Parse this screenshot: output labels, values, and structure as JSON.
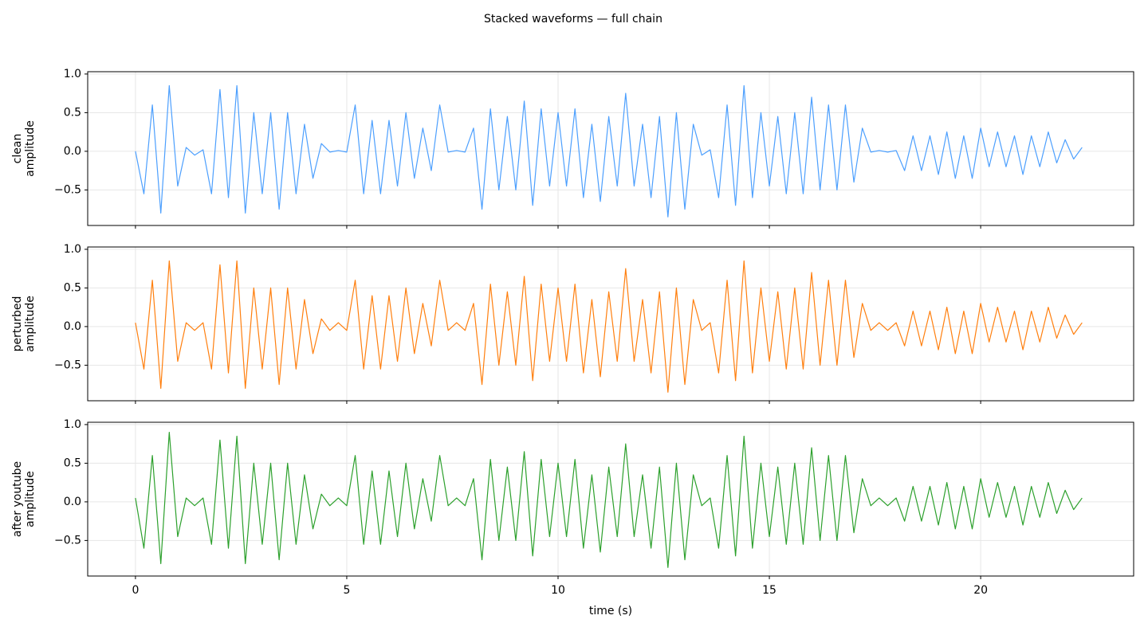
{
  "title": "Stacked waveforms — full chain",
  "chart_data": [
    {
      "type": "line",
      "color": "#4c9ffe",
      "ylabel": [
        "clean",
        "amplitude"
      ],
      "grid": true,
      "show_xticklabels": false,
      "xlim": [
        -1.13,
        23.62
      ],
      "xticks": [
        0,
        5,
        10,
        15,
        20
      ],
      "ylim": [
        -0.96,
        1.03
      ],
      "yticks": [
        {
          "value": -0.5,
          "label": "−0.5"
        },
        {
          "value": 0,
          "label": "0.0"
        },
        {
          "value": 0.5,
          "label": "0.5"
        },
        {
          "value": 1.0,
          "label": "1.0"
        }
      ],
      "x": [
        0,
        0.2,
        0.4,
        0.6,
        0.8,
        1.0,
        1.2,
        1.4,
        1.6,
        1.8,
        2.0,
        2.2,
        2.4,
        2.6,
        2.8,
        3.0,
        3.2,
        3.4,
        3.6,
        3.8,
        4.0,
        4.2,
        4.4,
        4.6,
        4.8,
        5.0,
        5.2,
        5.4,
        5.6,
        5.8,
        6.0,
        6.2,
        6.4,
        6.6,
        6.8,
        7.0,
        7.2,
        7.4,
        7.6,
        7.8,
        8.0,
        8.2,
        8.4,
        8.6,
        8.8,
        9.0,
        9.2,
        9.4,
        9.6,
        9.8,
        10.0,
        10.2,
        10.4,
        10.6,
        10.8,
        11.0,
        11.2,
        11.4,
        11.6,
        11.8,
        12.0,
        12.2,
        12.4,
        12.6,
        12.8,
        13.0,
        13.2,
        13.4,
        13.6,
        13.8,
        14.0,
        14.2,
        14.4,
        14.6,
        14.8,
        15.0,
        15.2,
        15.4,
        15.6,
        15.8,
        16.0,
        16.2,
        16.4,
        16.6,
        16.8,
        17.0,
        17.2,
        17.4,
        17.6,
        17.8,
        18.0,
        18.2,
        18.4,
        18.6,
        18.8,
        19.0,
        19.2,
        19.4,
        19.6,
        19.8,
        20.0,
        20.2,
        20.4,
        20.6,
        20.8,
        21.0,
        21.2,
        21.4,
        21.6,
        21.8,
        22.0,
        22.2,
        22.4
      ],
      "values": [
        0.0,
        -0.55,
        0.6,
        -0.8,
        0.85,
        -0.45,
        0.05,
        -0.05,
        0.02,
        -0.55,
        0.8,
        -0.6,
        0.85,
        -0.8,
        0.5,
        -0.55,
        0.5,
        -0.75,
        0.5,
        -0.55,
        0.35,
        -0.35,
        0.1,
        -0.01,
        0.01,
        -0.01,
        0.6,
        -0.55,
        0.4,
        -0.55,
        0.4,
        -0.45,
        0.5,
        -0.35,
        0.3,
        -0.25,
        0.6,
        -0.01,
        0.01,
        -0.01,
        0.3,
        -0.75,
        0.55,
        -0.5,
        0.45,
        -0.5,
        0.65,
        -0.7,
        0.55,
        -0.45,
        0.5,
        -0.45,
        0.55,
        -0.6,
        0.35,
        -0.65,
        0.45,
        -0.45,
        0.75,
        -0.45,
        0.35,
        -0.6,
        0.45,
        -0.85,
        0.5,
        -0.75,
        0.35,
        -0.05,
        0.02,
        -0.6,
        0.6,
        -0.7,
        0.85,
        -0.6,
        0.5,
        -0.45,
        0.45,
        -0.55,
        0.5,
        -0.55,
        0.7,
        -0.5,
        0.6,
        -0.5,
        0.6,
        -0.4,
        0.3,
        -0.01,
        0.01,
        -0.01,
        0.01,
        -0.25,
        0.2,
        -0.25,
        0.2,
        -0.3,
        0.25,
        -0.35,
        0.2,
        -0.35,
        0.3,
        -0.2,
        0.25,
        -0.2,
        0.2,
        -0.3,
        0.2,
        -0.2,
        0.25,
        -0.15,
        0.15,
        -0.1,
        0.05
      ]
    },
    {
      "type": "line",
      "color": "#ff7f0e",
      "ylabel": [
        "perturbed",
        "amplitude"
      ],
      "grid": true,
      "show_xticklabels": false,
      "xlim": [
        -1.13,
        23.62
      ],
      "xticks": [
        0,
        5,
        10,
        15,
        20
      ],
      "ylim": [
        -0.96,
        1.03
      ],
      "yticks": [
        {
          "value": -0.5,
          "label": "−0.5"
        },
        {
          "value": 0,
          "label": "0.0"
        },
        {
          "value": 0.5,
          "label": "0.5"
        },
        {
          "value": 1.0,
          "label": "1.0"
        }
      ],
      "x": [
        0,
        0.2,
        0.4,
        0.6,
        0.8,
        1.0,
        1.2,
        1.4,
        1.6,
        1.8,
        2.0,
        2.2,
        2.4,
        2.6,
        2.8,
        3.0,
        3.2,
        3.4,
        3.6,
        3.8,
        4.0,
        4.2,
        4.4,
        4.6,
        4.8,
        5.0,
        5.2,
        5.4,
        5.6,
        5.8,
        6.0,
        6.2,
        6.4,
        6.6,
        6.8,
        7.0,
        7.2,
        7.4,
        7.6,
        7.8,
        8.0,
        8.2,
        8.4,
        8.6,
        8.8,
        9.0,
        9.2,
        9.4,
        9.6,
        9.8,
        10.0,
        10.2,
        10.4,
        10.6,
        10.8,
        11.0,
        11.2,
        11.4,
        11.6,
        11.8,
        12.0,
        12.2,
        12.4,
        12.6,
        12.8,
        13.0,
        13.2,
        13.4,
        13.6,
        13.8,
        14.0,
        14.2,
        14.4,
        14.6,
        14.8,
        15.0,
        15.2,
        15.4,
        15.6,
        15.8,
        16.0,
        16.2,
        16.4,
        16.6,
        16.8,
        17.0,
        17.2,
        17.4,
        17.6,
        17.8,
        18.0,
        18.2,
        18.4,
        18.6,
        18.8,
        19.0,
        19.2,
        19.4,
        19.6,
        19.8,
        20.0,
        20.2,
        20.4,
        20.6,
        20.8,
        21.0,
        21.2,
        21.4,
        21.6,
        21.8,
        22.0,
        22.2,
        22.4
      ],
      "values": [
        0.05,
        -0.55,
        0.6,
        -0.8,
        0.85,
        -0.45,
        0.05,
        -0.05,
        0.05,
        -0.55,
        0.8,
        -0.6,
        0.85,
        -0.8,
        0.5,
        -0.55,
        0.5,
        -0.75,
        0.5,
        -0.55,
        0.35,
        -0.35,
        0.1,
        -0.05,
        0.05,
        -0.05,
        0.6,
        -0.55,
        0.4,
        -0.55,
        0.4,
        -0.45,
        0.5,
        -0.35,
        0.3,
        -0.25,
        0.6,
        -0.05,
        0.05,
        -0.05,
        0.3,
        -0.75,
        0.55,
        -0.5,
        0.45,
        -0.5,
        0.65,
        -0.7,
        0.55,
        -0.45,
        0.5,
        -0.45,
        0.55,
        -0.6,
        0.35,
        -0.65,
        0.45,
        -0.45,
        0.75,
        -0.45,
        0.35,
        -0.6,
        0.45,
        -0.85,
        0.5,
        -0.75,
        0.35,
        -0.05,
        0.05,
        -0.6,
        0.6,
        -0.7,
        0.85,
        -0.6,
        0.5,
        -0.45,
        0.45,
        -0.55,
        0.5,
        -0.55,
        0.7,
        -0.5,
        0.6,
        -0.5,
        0.6,
        -0.4,
        0.3,
        -0.05,
        0.05,
        -0.05,
        0.05,
        -0.25,
        0.2,
        -0.25,
        0.2,
        -0.3,
        0.25,
        -0.35,
        0.2,
        -0.35,
        0.3,
        -0.2,
        0.25,
        -0.2,
        0.2,
        -0.3,
        0.2,
        -0.2,
        0.25,
        -0.15,
        0.15,
        -0.1,
        0.05
      ]
    },
    {
      "type": "line",
      "color": "#2ca02c",
      "ylabel": [
        "after youtube",
        "amplitude"
      ],
      "grid": true,
      "show_xticklabels": true,
      "xlabel": "time (s)",
      "xlim": [
        -1.13,
        23.62
      ],
      "xticks": [
        0,
        5,
        10,
        15,
        20
      ],
      "ylim": [
        -0.96,
        1.03
      ],
      "yticks": [
        {
          "value": -0.5,
          "label": "−0.5"
        },
        {
          "value": 0,
          "label": "0.0"
        },
        {
          "value": 0.5,
          "label": "0.5"
        },
        {
          "value": 1.0,
          "label": "1.0"
        }
      ],
      "x": [
        0,
        0.2,
        0.4,
        0.6,
        0.8,
        1.0,
        1.2,
        1.4,
        1.6,
        1.8,
        2.0,
        2.2,
        2.4,
        2.6,
        2.8,
        3.0,
        3.2,
        3.4,
        3.6,
        3.8,
        4.0,
        4.2,
        4.4,
        4.6,
        4.8,
        5.0,
        5.2,
        5.4,
        5.6,
        5.8,
        6.0,
        6.2,
        6.4,
        6.6,
        6.8,
        7.0,
        7.2,
        7.4,
        7.6,
        7.8,
        8.0,
        8.2,
        8.4,
        8.6,
        8.8,
        9.0,
        9.2,
        9.4,
        9.6,
        9.8,
        10.0,
        10.2,
        10.4,
        10.6,
        10.8,
        11.0,
        11.2,
        11.4,
        11.6,
        11.8,
        12.0,
        12.2,
        12.4,
        12.6,
        12.8,
        13.0,
        13.2,
        13.4,
        13.6,
        13.8,
        14.0,
        14.2,
        14.4,
        14.6,
        14.8,
        15.0,
        15.2,
        15.4,
        15.6,
        15.8,
        16.0,
        16.2,
        16.4,
        16.6,
        16.8,
        17.0,
        17.2,
        17.4,
        17.6,
        17.8,
        18.0,
        18.2,
        18.4,
        18.6,
        18.8,
        19.0,
        19.2,
        19.4,
        19.6,
        19.8,
        20.0,
        20.2,
        20.4,
        20.6,
        20.8,
        21.0,
        21.2,
        21.4,
        21.6,
        21.8,
        22.0,
        22.2,
        22.4
      ],
      "values": [
        0.05,
        -0.6,
        0.6,
        -0.8,
        0.9,
        -0.45,
        0.05,
        -0.05,
        0.05,
        -0.55,
        0.8,
        -0.6,
        0.85,
        -0.8,
        0.5,
        -0.55,
        0.5,
        -0.75,
        0.5,
        -0.55,
        0.35,
        -0.35,
        0.1,
        -0.05,
        0.05,
        -0.05,
        0.6,
        -0.55,
        0.4,
        -0.55,
        0.4,
        -0.45,
        0.5,
        -0.35,
        0.3,
        -0.25,
        0.6,
        -0.05,
        0.05,
        -0.05,
        0.3,
        -0.75,
        0.55,
        -0.5,
        0.45,
        -0.5,
        0.65,
        -0.7,
        0.55,
        -0.45,
        0.5,
        -0.45,
        0.55,
        -0.6,
        0.35,
        -0.65,
        0.45,
        -0.45,
        0.75,
        -0.45,
        0.35,
        -0.6,
        0.45,
        -0.85,
        0.5,
        -0.75,
        0.35,
        -0.05,
        0.05,
        -0.6,
        0.6,
        -0.7,
        0.85,
        -0.6,
        0.5,
        -0.45,
        0.45,
        -0.55,
        0.5,
        -0.55,
        0.7,
        -0.5,
        0.6,
        -0.5,
        0.6,
        -0.4,
        0.3,
        -0.05,
        0.05,
        -0.05,
        0.05,
        -0.25,
        0.2,
        -0.25,
        0.2,
        -0.3,
        0.25,
        -0.35,
        0.2,
        -0.35,
        0.3,
        -0.2,
        0.25,
        -0.2,
        0.2,
        -0.3,
        0.2,
        -0.2,
        0.25,
        -0.15,
        0.15,
        -0.1,
        0.05
      ]
    }
  ]
}
